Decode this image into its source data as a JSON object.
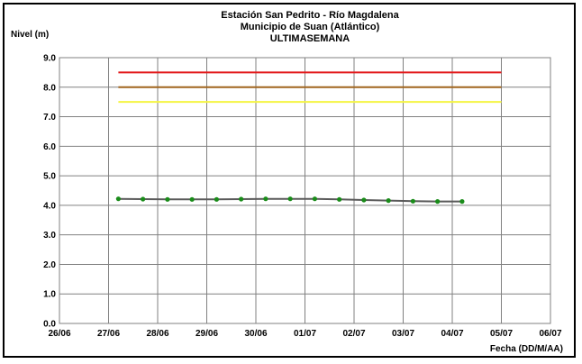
{
  "chart_data": {
    "type": "line",
    "title_lines": [
      "Estación San Pedrito - Río Magdalena",
      "Municipio de Suan (Atlántico)",
      "ULTIMASEMANA"
    ],
    "ylabel": "Nivel (m)",
    "xlabel": "Fecha (DD/M/AA)",
    "ylim": [
      0,
      9
    ],
    "yticks": [
      "0.0",
      "1.0",
      "2.0",
      "3.0",
      "4.0",
      "5.0",
      "6.0",
      "7.0",
      "8.0",
      "9.0"
    ],
    "xticks": [
      "26/06",
      "27/06",
      "28/06",
      "29/06",
      "30/06",
      "01/07",
      "02/07",
      "03/07",
      "04/07",
      "05/07",
      "06/07"
    ],
    "grid": true,
    "thresholds": [
      {
        "value": 8.5,
        "color": "#e31a1c"
      },
      {
        "value": 8.0,
        "color": "#a0651e"
      },
      {
        "value": 7.5,
        "color": "#f5f542"
      }
    ],
    "threshold_x_range": [
      1.2,
      9.0
    ],
    "series": [
      {
        "color_line": "#5a5a5a",
        "color_marker": "#1a8c1a",
        "points": [
          [
            1.2,
            4.22
          ],
          [
            1.7,
            4.21
          ],
          [
            2.2,
            4.2
          ],
          [
            2.7,
            4.2
          ],
          [
            3.2,
            4.2
          ],
          [
            3.7,
            4.21
          ],
          [
            4.2,
            4.22
          ],
          [
            4.7,
            4.22
          ],
          [
            5.2,
            4.22
          ],
          [
            5.7,
            4.2
          ],
          [
            6.2,
            4.18
          ],
          [
            6.7,
            4.16
          ],
          [
            7.2,
            4.14
          ],
          [
            7.7,
            4.13
          ],
          [
            8.2,
            4.13
          ]
        ]
      }
    ]
  }
}
